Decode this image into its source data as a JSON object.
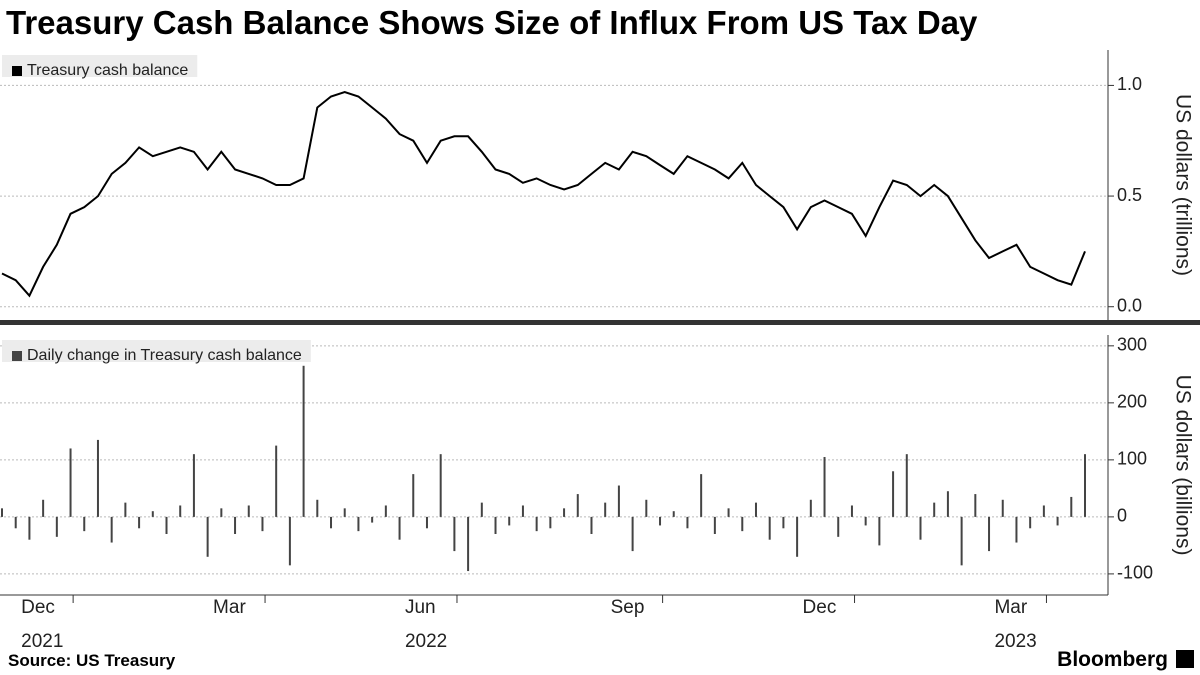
{
  "title": "Treasury Cash Balance Shows Size of Influx From US Tax Day",
  "source": "Source: US Treasury",
  "brand": "Bloomberg",
  "chart_data": [
    {
      "type": "line",
      "y_label": "US dollars (trillions)",
      "ylim": [
        -0.06,
        1.16
      ],
      "yticks": [
        {
          "value": 0,
          "label": "0.0"
        },
        {
          "value": 0.5,
          "label": "0.5"
        },
        {
          "value": 1,
          "label": "1.0"
        }
      ],
      "grid": true,
      "series": [
        {
          "name": "Treasury cash balance",
          "color": "#000000",
          "values": [
            0.15,
            0.12,
            0.05,
            0.18,
            0.28,
            0.42,
            0.45,
            0.5,
            0.6,
            0.65,
            0.72,
            0.68,
            0.7,
            0.72,
            0.7,
            0.62,
            0.7,
            0.62,
            0.6,
            0.58,
            0.55,
            0.55,
            0.58,
            0.9,
            0.95,
            0.97,
            0.95,
            0.9,
            0.85,
            0.78,
            0.75,
            0.65,
            0.75,
            0.77,
            0.77,
            0.7,
            0.62,
            0.6,
            0.56,
            0.58,
            0.55,
            0.53,
            0.55,
            0.6,
            0.65,
            0.62,
            0.7,
            0.68,
            0.64,
            0.6,
            0.68,
            0.65,
            0.62,
            0.58,
            0.65,
            0.55,
            0.5,
            0.45,
            0.35,
            0.45,
            0.48,
            0.45,
            0.42,
            0.32,
            0.45,
            0.57,
            0.55,
            0.5,
            0.55,
            0.5,
            0.4,
            0.3,
            0.22,
            0.25,
            0.28,
            0.18,
            0.15,
            0.12,
            0.1,
            0.25
          ]
        }
      ]
    },
    {
      "type": "bar",
      "y_label": "US dollars (billions)",
      "ylim": [
        -137,
        319
      ],
      "yticks": [
        -100,
        0,
        100,
        200,
        300
      ],
      "grid": true,
      "categories": [
        null,
        null,
        null,
        "Dec\n2021",
        null,
        null,
        null,
        null,
        null,
        null,
        null,
        null,
        null,
        null,
        null,
        null,
        null,
        "Mar",
        null,
        null,
        null,
        null,
        null,
        null,
        null,
        null,
        null,
        null,
        null,
        null,
        null,
        "Jun\n2022",
        null,
        null,
        null,
        null,
        null,
        null,
        null,
        null,
        null,
        null,
        null,
        null,
        null,
        null,
        "Sep",
        null,
        null,
        null,
        null,
        null,
        null,
        null,
        null,
        null,
        null,
        null,
        null,
        null,
        "Dec",
        null,
        null,
        null,
        null,
        null,
        null,
        null,
        null,
        null,
        null,
        null,
        null,
        null,
        "Mar\n2023",
        null,
        null,
        null,
        null,
        null
      ],
      "series": [
        {
          "name": "Daily change in Treasury cash balance",
          "color": "#444444",
          "values": [
            15,
            -20,
            -40,
            30,
            -35,
            120,
            -25,
            135,
            -45,
            25,
            -20,
            10,
            -30,
            20,
            110,
            -70,
            15,
            -30,
            20,
            -25,
            125,
            -85,
            265,
            30,
            -20,
            15,
            -25,
            -10,
            20,
            -40,
            75,
            -20,
            110,
            -60,
            -95,
            25,
            -30,
            -15,
            20,
            -25,
            -20,
            15,
            40,
            -30,
            25,
            55,
            -60,
            30,
            -15,
            10,
            -20,
            75,
            -30,
            15,
            -25,
            25,
            -40,
            -20,
            -70,
            30,
            105,
            -35,
            20,
            -15,
            -50,
            80,
            110,
            -40,
            25,
            45,
            -85,
            40,
            -60,
            30,
            -45,
            -20,
            20,
            -15,
            35,
            110
          ]
        }
      ]
    }
  ]
}
